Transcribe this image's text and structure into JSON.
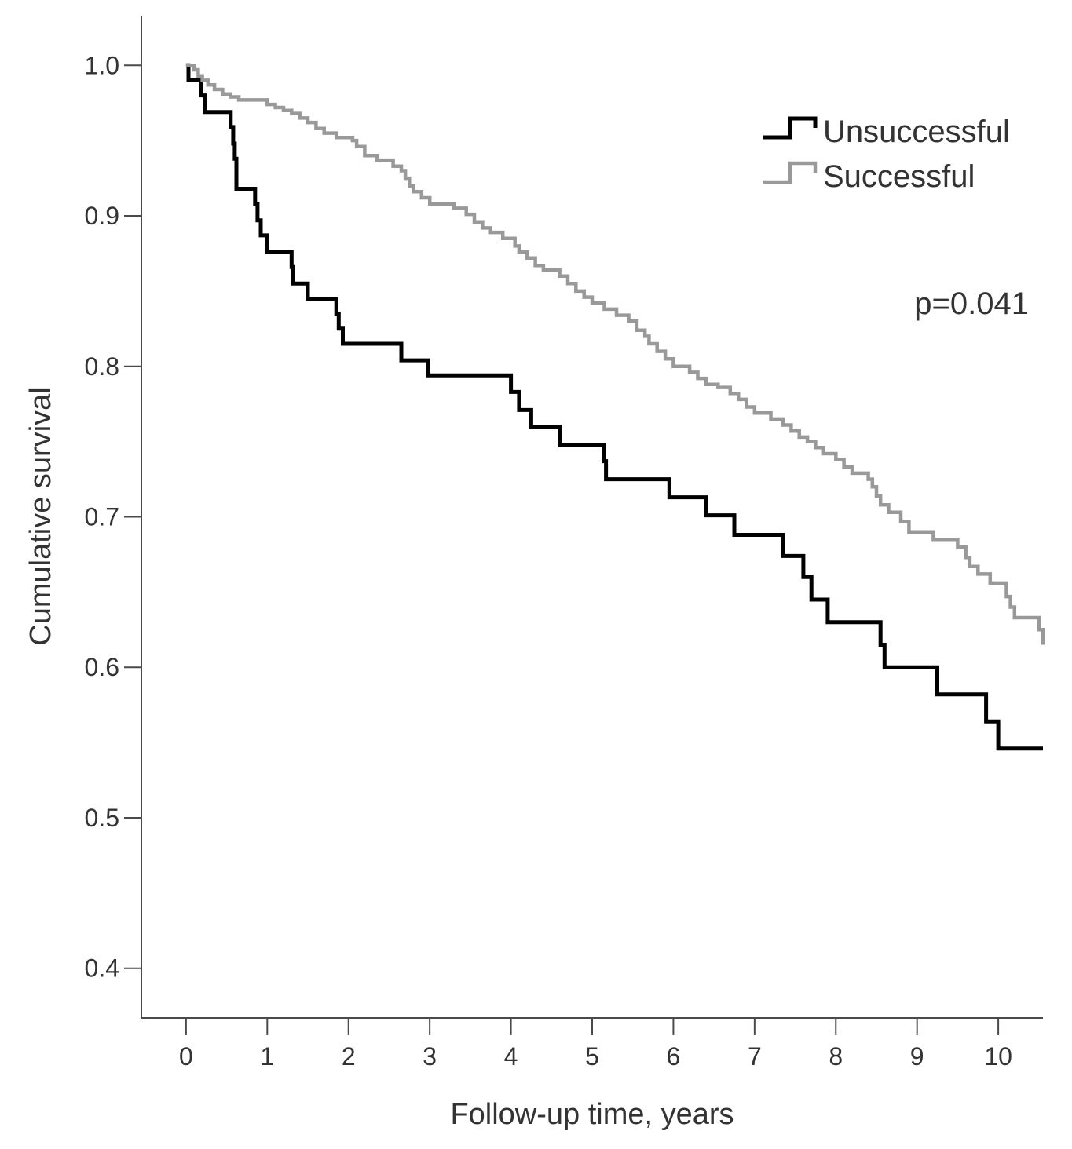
{
  "chart_data": {
    "type": "line",
    "title": "",
    "xlabel": "Follow-up time, years",
    "ylabel": "Cumulative survival",
    "xlim": [
      -0.55,
      10.55
    ],
    "ylim": [
      0.367,
      1.033
    ],
    "xticks": [
      0,
      1,
      2,
      3,
      4,
      5,
      6,
      7,
      8,
      9,
      10
    ],
    "xtick_labels": [
      "0",
      "1",
      "2",
      "3",
      "4",
      "5",
      "6",
      "7",
      "8",
      "9",
      "10"
    ],
    "yticks": [
      1.0,
      0.9,
      0.8,
      0.7,
      0.6,
      0.5,
      0.4
    ],
    "ytick_labels": [
      "1.0",
      "0.9",
      "0.8",
      "0.7",
      "0.6",
      "0.5",
      "0.4"
    ],
    "grid": false,
    "legend_position": "top-right",
    "annotation": "p=0.041",
    "series": [
      {
        "name": "Unsuccessful",
        "color": "#000000",
        "step": true,
        "points": [
          [
            0,
            1.0
          ],
          [
            0.03,
            0.99
          ],
          [
            0.18,
            0.98
          ],
          [
            0.23,
            0.969
          ],
          [
            0.55,
            0.959
          ],
          [
            0.58,
            0.948
          ],
          [
            0.6,
            0.938
          ],
          [
            0.62,
            0.918
          ],
          [
            0.85,
            0.908
          ],
          [
            0.88,
            0.897
          ],
          [
            0.92,
            0.887
          ],
          [
            1.0,
            0.876
          ],
          [
            1.3,
            0.866
          ],
          [
            1.32,
            0.855
          ],
          [
            1.5,
            0.845
          ],
          [
            1.85,
            0.835
          ],
          [
            1.88,
            0.825
          ],
          [
            1.93,
            0.815
          ],
          [
            2.65,
            0.804
          ],
          [
            2.98,
            0.794
          ],
          [
            4.0,
            0.783
          ],
          [
            4.1,
            0.771
          ],
          [
            4.25,
            0.76
          ],
          [
            4.6,
            0.748
          ],
          [
            5.15,
            0.737
          ],
          [
            5.17,
            0.725
          ],
          [
            5.95,
            0.713
          ],
          [
            6.4,
            0.701
          ],
          [
            6.75,
            0.688
          ],
          [
            7.35,
            0.674
          ],
          [
            7.6,
            0.66
          ],
          [
            7.7,
            0.645
          ],
          [
            7.9,
            0.63
          ],
          [
            8.55,
            0.615
          ],
          [
            8.6,
            0.6
          ],
          [
            9.25,
            0.582
          ],
          [
            9.85,
            0.564
          ],
          [
            10.0,
            0.546
          ],
          [
            10.55,
            0.546
          ]
        ]
      },
      {
        "name": "Successful",
        "color": "#999999",
        "step": true,
        "points": [
          [
            0,
            1.0
          ],
          [
            0.1,
            0.997
          ],
          [
            0.15,
            0.993
          ],
          [
            0.2,
            0.99
          ],
          [
            0.27,
            0.987
          ],
          [
            0.35,
            0.984
          ],
          [
            0.45,
            0.981
          ],
          [
            0.55,
            0.979
          ],
          [
            0.65,
            0.977
          ],
          [
            1.0,
            0.974
          ],
          [
            1.1,
            0.972
          ],
          [
            1.2,
            0.97
          ],
          [
            1.3,
            0.968
          ],
          [
            1.4,
            0.965
          ],
          [
            1.5,
            0.962
          ],
          [
            1.6,
            0.958
          ],
          [
            1.7,
            0.955
          ],
          [
            1.85,
            0.952
          ],
          [
            2.05,
            0.95
          ],
          [
            2.1,
            0.946
          ],
          [
            2.2,
            0.94
          ],
          [
            2.35,
            0.937
          ],
          [
            2.55,
            0.933
          ],
          [
            2.65,
            0.93
          ],
          [
            2.7,
            0.925
          ],
          [
            2.75,
            0.92
          ],
          [
            2.8,
            0.916
          ],
          [
            2.9,
            0.912
          ],
          [
            3.0,
            0.908
          ],
          [
            3.3,
            0.905
          ],
          [
            3.45,
            0.901
          ],
          [
            3.55,
            0.896
          ],
          [
            3.65,
            0.892
          ],
          [
            3.75,
            0.889
          ],
          [
            3.9,
            0.885
          ],
          [
            4.05,
            0.88
          ],
          [
            4.1,
            0.876
          ],
          [
            4.2,
            0.872
          ],
          [
            4.3,
            0.867
          ],
          [
            4.4,
            0.864
          ],
          [
            4.6,
            0.86
          ],
          [
            4.7,
            0.855
          ],
          [
            4.8,
            0.85
          ],
          [
            4.9,
            0.846
          ],
          [
            5.0,
            0.842
          ],
          [
            5.15,
            0.838
          ],
          [
            5.3,
            0.834
          ],
          [
            5.45,
            0.83
          ],
          [
            5.55,
            0.824
          ],
          [
            5.65,
            0.82
          ],
          [
            5.7,
            0.815
          ],
          [
            5.8,
            0.81
          ],
          [
            5.9,
            0.805
          ],
          [
            6.0,
            0.8
          ],
          [
            6.2,
            0.796
          ],
          [
            6.3,
            0.792
          ],
          [
            6.4,
            0.788
          ],
          [
            6.55,
            0.786
          ],
          [
            6.7,
            0.782
          ],
          [
            6.8,
            0.778
          ],
          [
            6.9,
            0.773
          ],
          [
            7.0,
            0.769
          ],
          [
            7.2,
            0.765
          ],
          [
            7.35,
            0.761
          ],
          [
            7.45,
            0.757
          ],
          [
            7.55,
            0.753
          ],
          [
            7.65,
            0.75
          ],
          [
            7.75,
            0.746
          ],
          [
            7.85,
            0.742
          ],
          [
            8.0,
            0.738
          ],
          [
            8.1,
            0.733
          ],
          [
            8.2,
            0.729
          ],
          [
            8.4,
            0.725
          ],
          [
            8.45,
            0.72
          ],
          [
            8.5,
            0.714
          ],
          [
            8.55,
            0.708
          ],
          [
            8.65,
            0.703
          ],
          [
            8.8,
            0.697
          ],
          [
            8.9,
            0.69
          ],
          [
            9.2,
            0.685
          ],
          [
            9.5,
            0.68
          ],
          [
            9.6,
            0.673
          ],
          [
            9.65,
            0.667
          ],
          [
            9.75,
            0.662
          ],
          [
            9.9,
            0.656
          ],
          [
            10.1,
            0.647
          ],
          [
            10.15,
            0.64
          ],
          [
            10.2,
            0.633
          ],
          [
            10.5,
            0.625
          ],
          [
            10.55,
            0.615
          ]
        ]
      }
    ]
  }
}
